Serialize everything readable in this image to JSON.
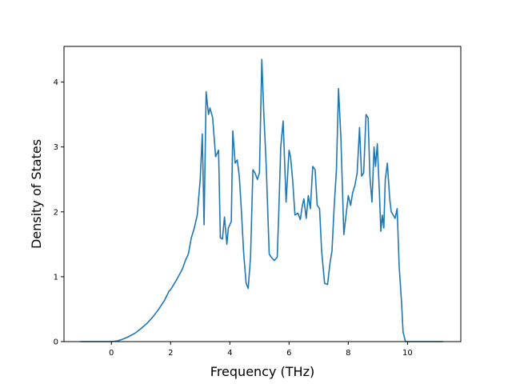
{
  "chart_data": {
    "type": "line",
    "title": "",
    "xlabel": "Frequency (THz)",
    "ylabel": "Density of States",
    "xlim": [
      -1.6,
      11.8
    ],
    "ylim": [
      0,
      4.55
    ],
    "xticks": [
      0,
      2,
      4,
      6,
      8,
      10
    ],
    "yticks": [
      0,
      1,
      2,
      3,
      4
    ],
    "grid": false,
    "legend": "none",
    "series": [
      {
        "color": "#1f77b4",
        "x": [
          -1.05,
          -0.8,
          -0.5,
          -0.2,
          0.0,
          0.2,
          0.4,
          0.6,
          0.8,
          1.0,
          1.2,
          1.4,
          1.6,
          1.8,
          1.95,
          2.0,
          2.2,
          2.4,
          2.5,
          2.6,
          2.7,
          2.8,
          2.9,
          3.0,
          3.07,
          3.13,
          3.2,
          3.28,
          3.33,
          3.42,
          3.52,
          3.62,
          3.68,
          3.75,
          3.82,
          3.9,
          3.95,
          4.05,
          4.1,
          4.18,
          4.25,
          4.32,
          4.38,
          4.47,
          4.55,
          4.62,
          4.7,
          4.78,
          4.85,
          4.93,
          5.0,
          5.08,
          5.15,
          5.23,
          5.33,
          5.4,
          5.5,
          5.6,
          5.65,
          5.72,
          5.8,
          5.9,
          6.0,
          6.05,
          6.12,
          6.2,
          6.3,
          6.38,
          6.45,
          6.5,
          6.58,
          6.65,
          6.72,
          6.8,
          6.88,
          6.95,
          7.03,
          7.1,
          7.2,
          7.3,
          7.38,
          7.45,
          7.52,
          7.6,
          7.67,
          7.75,
          7.85,
          7.9,
          8.0,
          8.08,
          8.15,
          8.22,
          8.3,
          8.38,
          8.45,
          8.52,
          8.6,
          8.67,
          8.73,
          8.8,
          8.87,
          8.92,
          8.98,
          9.05,
          9.1,
          9.15,
          9.2,
          9.25,
          9.32,
          9.4,
          9.45,
          9.52,
          9.58,
          9.65,
          9.72,
          9.8,
          9.85,
          9.93,
          9.98,
          10.03,
          10.1,
          10.17,
          10.22,
          10.4,
          10.8,
          11.2
        ],
        "values": [
          0,
          0,
          0,
          0,
          0,
          0.01,
          0.04,
          0.08,
          0.13,
          0.2,
          0.28,
          0.38,
          0.5,
          0.64,
          0.78,
          0.8,
          0.95,
          1.12,
          1.25,
          1.35,
          1.6,
          1.75,
          1.95,
          2.5,
          3.2,
          1.8,
          3.85,
          3.5,
          3.6,
          3.45,
          2.85,
          2.95,
          1.6,
          1.58,
          1.92,
          1.5,
          1.75,
          1.85,
          3.25,
          2.75,
          2.8,
          2.55,
          2.1,
          1.35,
          0.9,
          0.82,
          1.3,
          2.65,
          2.6,
          2.5,
          2.6,
          4.35,
          3.5,
          2.7,
          1.35,
          1.3,
          1.25,
          1.3,
          1.95,
          3.0,
          3.4,
          2.15,
          2.95,
          2.85,
          2.5,
          1.95,
          1.98,
          1.88,
          2.1,
          2.2,
          1.9,
          2.25,
          2.05,
          2.7,
          2.65,
          2.1,
          2.05,
          1.4,
          0.9,
          0.88,
          1.2,
          1.4,
          2.05,
          2.65,
          3.9,
          3.15,
          1.65,
          1.85,
          2.25,
          2.1,
          2.3,
          2.4,
          2.6,
          3.3,
          2.55,
          2.6,
          3.5,
          3.45,
          2.55,
          2.15,
          3.0,
          2.7,
          3.05,
          2.3,
          1.7,
          1.95,
          1.75,
          2.5,
          2.75,
          2.2,
          2.0,
          1.95,
          1.9,
          2.05,
          1.15,
          0.6,
          0.15,
          0,
          0,
          0,
          0,
          0,
          0,
          0,
          0,
          0
        ]
      }
    ]
  }
}
